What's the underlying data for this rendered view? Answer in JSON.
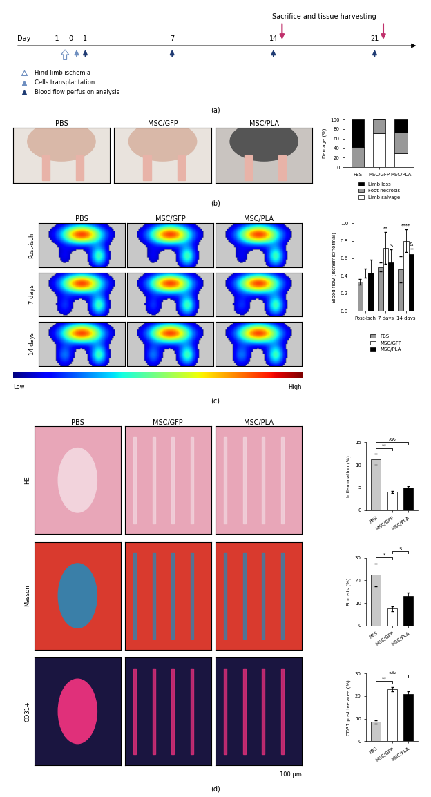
{
  "panel_labels": [
    "(a)",
    "(b)",
    "(c)",
    "(d)"
  ],
  "timeline": {
    "axis_label": "Day",
    "days": [
      -1,
      0,
      1,
      7,
      14,
      21
    ],
    "header": "Sacrifice and tissue harvesting",
    "sacrifice_days": [
      14,
      21
    ],
    "events": [
      {
        "name": "Hind-limb ischemia",
        "days": [
          0
        ],
        "color": "#6f8fc0",
        "marker": "hollow_arrow"
      },
      {
        "name": "Cells transplantation",
        "days": [
          0
        ],
        "color": "#6f8fc0",
        "marker": "arrow"
      },
      {
        "name": "Blood flow perfusion analysis",
        "days": [
          1,
          7,
          14,
          21
        ],
        "color": "#1f3b73",
        "marker": "arrow"
      }
    ]
  },
  "photos_b": {
    "columns": [
      "PBS",
      "MSC/GFP",
      "MSC/PLA"
    ]
  },
  "doppler_c": {
    "columns": [
      "PBS",
      "MSC/GFP",
      "MSC/PLA"
    ],
    "rows": [
      "Post-isch",
      "7 days",
      "14 days"
    ],
    "colorbar": [
      "Low",
      "High"
    ]
  },
  "histology_d": {
    "columns": [
      "PBS",
      "MSC/GFP",
      "MSC/PLA"
    ],
    "rows": [
      "HE",
      "Masson",
      "CD31+"
    ],
    "scale_bar": "100 μm"
  },
  "chart_data": [
    {
      "type": "bar",
      "stacked": true,
      "categories": [
        "PBS",
        "MSC/GFP",
        "MSC/PLA"
      ],
      "ylabel": "Damage (%)",
      "ylim": [
        0,
        100
      ],
      "yticks": [
        0,
        20,
        40,
        60,
        80,
        100
      ],
      "legend": "below",
      "series": [
        {
          "name": "Limb salvage",
          "color": "#ffffff",
          "values": [
            0,
            71,
            29
          ]
        },
        {
          "name": "Foot necrosis",
          "color": "#999999",
          "values": [
            43,
            29,
            43
          ]
        },
        {
          "name": "Limb loss",
          "color": "#000000",
          "values": [
            57,
            0,
            28
          ]
        }
      ]
    },
    {
      "type": "bar",
      "categories": [
        "Post-isch",
        "7 days",
        "14 days"
      ],
      "ylabel": "Blood flow (ischemic/normal)",
      "ylim": [
        0,
        1.0
      ],
      "yticks": [
        {
          "value": 0,
          "label": "0.0"
        },
        0.2,
        0.4,
        0.6,
        0.8,
        {
          "value": 1.0,
          "label": "1.0"
        }
      ],
      "legend": "below",
      "series": [
        {
          "name": "PBS",
          "color": "#999999",
          "values": [
            0.33,
            0.5,
            0.47
          ],
          "errors": [
            0.03,
            0.05,
            0.15
          ]
        },
        {
          "name": "MSC/GFP",
          "color": "#ffffff",
          "values": [
            0.43,
            0.72,
            0.8
          ],
          "errors": [
            0.05,
            0.18,
            0.13
          ]
        },
        {
          "name": "MSC/PLA",
          "color": "#000000",
          "values": [
            0.43,
            0.55,
            0.65
          ],
          "errors": [
            0.15,
            0.15,
            0.06
          ]
        }
      ],
      "annotations": [
        {
          "text": "**",
          "category": "7 days",
          "series": "MSC/GFP"
        },
        {
          "text": "****",
          "category": "14 days",
          "series": "MSC/GFP"
        },
        {
          "text": "$",
          "category": "7 days",
          "series": "MSC/PLA"
        },
        {
          "text": "&",
          "category": "14 days",
          "series": "MSC/PLA"
        }
      ]
    },
    {
      "type": "bar",
      "categories": [
        "PBS",
        "MSC/GFP",
        "MSC/PLA"
      ],
      "ylabel": "Inflammation (%)",
      "values": [
        11.2,
        4.0,
        5.0
      ],
      "errors": [
        1.2,
        0.2,
        0.3
      ],
      "colors": [
        "#c8c8c8",
        "#ffffff",
        "#000000"
      ],
      "ylim": [
        0,
        15
      ],
      "yticks": [
        0,
        5,
        10,
        15
      ],
      "brackets": [
        {
          "text": "**",
          "between": [
            "PBS",
            "MSC/GFP"
          ]
        },
        {
          "text": "&&",
          "between": [
            "PBS",
            "MSC/PLA"
          ]
        }
      ]
    },
    {
      "type": "bar",
      "categories": [
        "PBS",
        "MSC/GFP",
        "MSC/PLA"
      ],
      "ylabel": "Fibrosis (%)",
      "values": [
        22.5,
        7.5,
        13.0
      ],
      "errors": [
        5.0,
        1.0,
        1.5
      ],
      "colors": [
        "#c8c8c8",
        "#ffffff",
        "#000000"
      ],
      "ylim": [
        0,
        30
      ],
      "yticks": [
        0,
        10,
        20,
        30
      ],
      "brackets": [
        {
          "text": "*",
          "between": [
            "PBS",
            "MSC/GFP"
          ]
        },
        {
          "text": "$",
          "between": [
            "MSC/GFP",
            "MSC/PLA"
          ]
        }
      ]
    },
    {
      "type": "bar",
      "categories": [
        "PBS",
        "MSC/GFP",
        "MSC/PLA"
      ],
      "ylabel": "CD31 positive area (%)",
      "values": [
        8.5,
        23.0,
        21.0
      ],
      "errors": [
        0.8,
        1.0,
        1.2
      ],
      "colors": [
        "#c8c8c8",
        "#ffffff",
        "#000000"
      ],
      "ylim": [
        0,
        30
      ],
      "yticks": [
        0,
        10,
        20,
        30
      ],
      "brackets": [
        {
          "text": "**",
          "between": [
            "PBS",
            "MSC/GFP"
          ]
        },
        {
          "text": "&&",
          "between": [
            "PBS",
            "MSC/PLA"
          ]
        }
      ]
    }
  ]
}
